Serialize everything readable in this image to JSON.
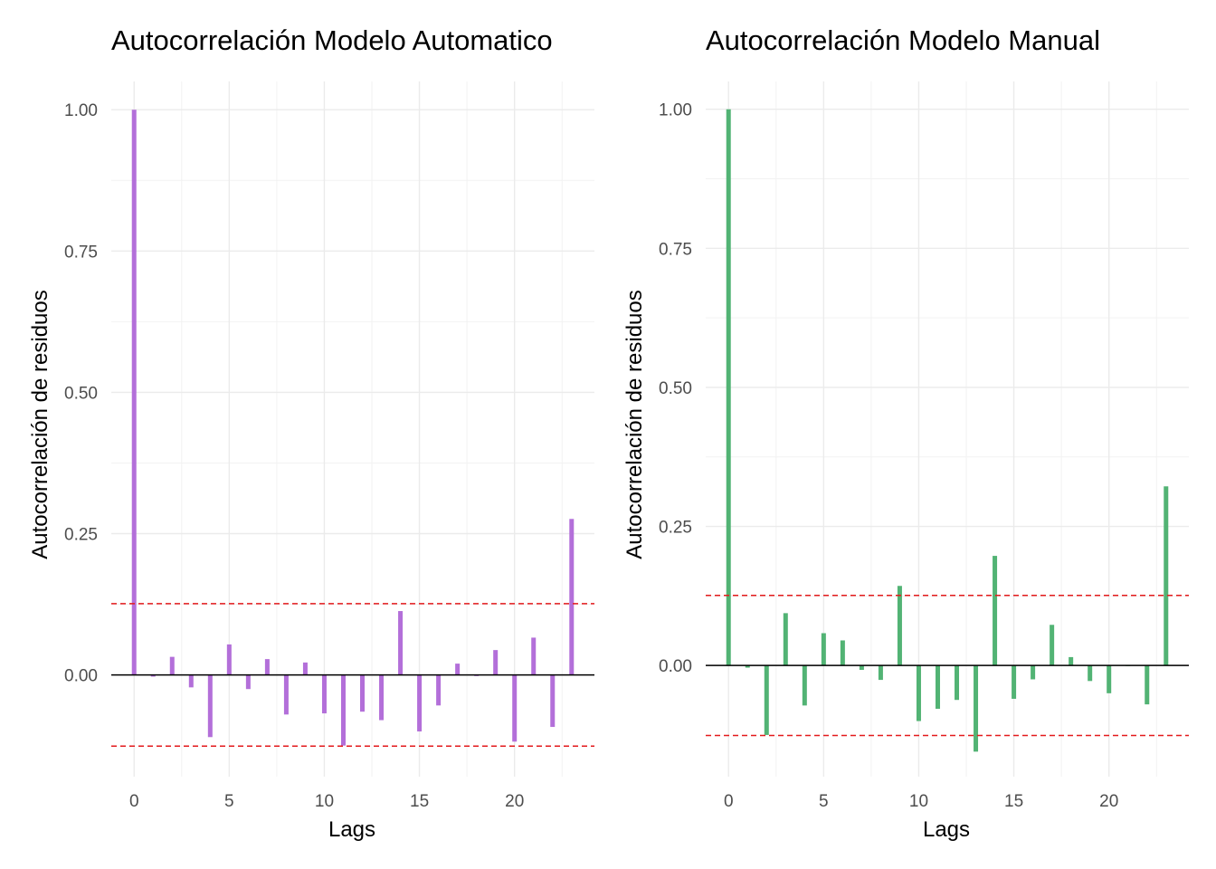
{
  "chart_data": [
    {
      "type": "bar",
      "title": "Autocorrelación Modelo Automatico",
      "xlabel": "Lags",
      "ylabel": "Autocorrelación de residuos",
      "x_ticks": [
        "0",
        "5",
        "10",
        "15",
        "20"
      ],
      "y_ticks": [
        "0.00",
        "0.25",
        "0.50",
        "0.75",
        "1.00"
      ],
      "lags": [
        0,
        1,
        2,
        3,
        4,
        5,
        6,
        7,
        8,
        9,
        10,
        11,
        12,
        13,
        14,
        15,
        16,
        17,
        18,
        19,
        20,
        21,
        22,
        23
      ],
      "values": [
        1.0,
        -0.003,
        0.032,
        -0.022,
        -0.11,
        0.054,
        -0.025,
        0.028,
        -0.07,
        0.022,
        -0.068,
        -0.125,
        -0.065,
        -0.08,
        0.113,
        -0.1,
        -0.054,
        0.02,
        -0.002,
        0.044,
        -0.118,
        0.066,
        -0.092,
        0.276
      ],
      "confidence_bound": 0.126,
      "ylim": [
        -0.18,
        1.05
      ],
      "xlim": [
        -1.2,
        24.2
      ],
      "grid": true,
      "bar_color": "#b36fd9",
      "bound_color": "#e31a1c"
    },
    {
      "type": "bar",
      "title": "Autocorrelación Modelo Manual",
      "xlabel": "Lags",
      "ylabel": "Autocorrelación de residuos",
      "x_ticks": [
        "0",
        "5",
        "10",
        "15",
        "20"
      ],
      "y_ticks": [
        "0.00",
        "0.25",
        "0.50",
        "0.75",
        "1.00"
      ],
      "lags": [
        0,
        1,
        2,
        3,
        4,
        5,
        6,
        7,
        8,
        9,
        10,
        11,
        12,
        13,
        14,
        15,
        16,
        17,
        18,
        19,
        20,
        21,
        22,
        23
      ],
      "values": [
        1.0,
        -0.004,
        -0.125,
        0.094,
        -0.072,
        0.058,
        0.045,
        -0.008,
        -0.026,
        0.143,
        -0.1,
        -0.078,
        -0.062,
        -0.155,
        0.197,
        -0.06,
        -0.025,
        0.073,
        0.015,
        -0.028,
        -0.05,
        0.0,
        -0.07,
        0.322
      ],
      "confidence_bound": 0.126,
      "ylim": [
        -0.2,
        1.05
      ],
      "xlim": [
        -1.2,
        24.2
      ],
      "grid": true,
      "bar_color": "#52b374",
      "bound_color": "#e31a1c"
    }
  ]
}
